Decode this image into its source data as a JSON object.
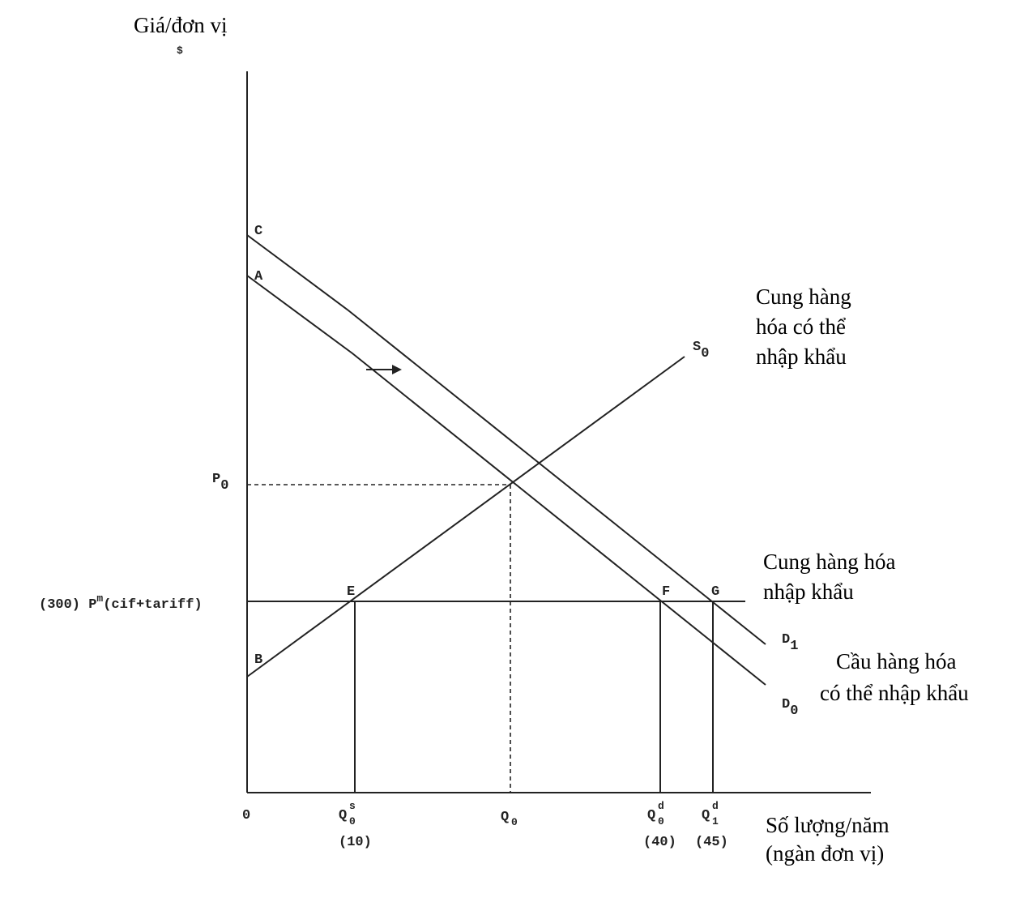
{
  "axes": {
    "y_label": "Giá/đơn vị",
    "y_unit": "$",
    "origin": "0",
    "x_label": [
      "Số lượng/năm",
      "(ngàn đơn vị)"
    ]
  },
  "point_labels": [
    "C",
    "A",
    "B",
    "E",
    "F",
    "G"
  ],
  "curves": {
    "S0": {
      "main": "S",
      "sub": "0"
    },
    "D1": {
      "main": "D",
      "sub": "1"
    },
    "D0": {
      "main": "D",
      "sub": "0"
    }
  },
  "price_labels": {
    "P0": {
      "main": "P",
      "sub": "0"
    },
    "world": {
      "prefix": "(300) P",
      "sup": "m",
      "suffix": "(cif+tariff)"
    }
  },
  "quantity_labels": [
    {
      "main": "Q",
      "sub": "0",
      "sup": "s",
      "value": "(10)"
    },
    {
      "main": "Q",
      "sub": "0"
    },
    {
      "main": "Q",
      "sub": "0",
      "sup": "d",
      "value": "(40)"
    },
    {
      "main": "Q",
      "sub": "1",
      "sup": "d",
      "value": "(45)"
    }
  ],
  "annotations": {
    "importable_supply": [
      "Cung hàng",
      "hóa có thể",
      "nhập khẩu"
    ],
    "import_supply": [
      "Cung hàng hóa",
      "nhập khẩu"
    ],
    "importable_demand": [
      "Cầu hàng hóa",
      "có thể nhập khẩu"
    ]
  }
}
